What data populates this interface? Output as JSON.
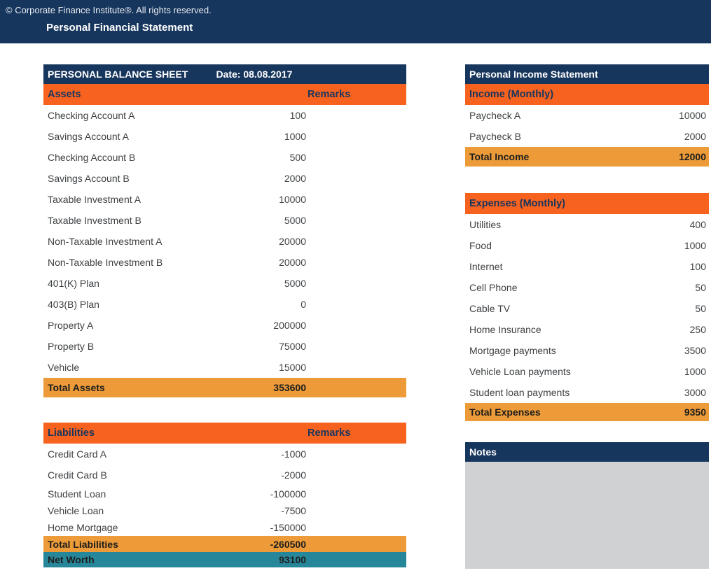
{
  "top_bar": {
    "copyright": "© Corporate Finance Institute®. All rights reserved.",
    "title": "Personal Financial Statement"
  },
  "balance_sheet": {
    "header": "PERSONAL BALANCE SHEET",
    "date_label": "Date: 08.08.2017",
    "assets": {
      "section_label": "Assets",
      "remarks_label": "Remarks",
      "rows": [
        {
          "label": "Checking Account A",
          "value": "100"
        },
        {
          "label": "Savings Account A",
          "value": "1000"
        },
        {
          "label": "Checking Account B",
          "value": "500"
        },
        {
          "label": "Savings Account B",
          "value": "2000"
        },
        {
          "label": "Taxable Investment A",
          "value": "10000"
        },
        {
          "label": "Taxable Investment B",
          "value": "5000"
        },
        {
          "label": "Non-Taxable Investment A",
          "value": "20000"
        },
        {
          "label": "Non-Taxable Investment B",
          "value": "20000"
        },
        {
          "label": "401(K) Plan",
          "value": "5000"
        },
        {
          "label": "403(B) Plan",
          "value": "0"
        },
        {
          "label": "Property A",
          "value": "200000"
        },
        {
          "label": "Property B",
          "value": "75000"
        },
        {
          "label": "Vehicle",
          "value": "15000"
        }
      ],
      "total": {
        "label": "Total Assets",
        "value": "353600"
      }
    },
    "liabilities": {
      "section_label": "Liabilities",
      "remarks_label": "Remarks",
      "rows": [
        {
          "label": "Credit Card A",
          "value": "-1000"
        },
        {
          "label": "Credit Card B",
          "value": "-2000"
        },
        {
          "label": "Student Loan",
          "value": "-100000",
          "compact": true
        },
        {
          "label": "Vehicle Loan",
          "value": "-7500",
          "compact": true
        },
        {
          "label": "Home Mortgage",
          "value": "-150000",
          "compact": true
        }
      ],
      "total": {
        "label": "Total Liabilities",
        "value": "-260500"
      },
      "net_worth": {
        "label": "Net Worth",
        "value": "93100"
      }
    }
  },
  "income_statement": {
    "header": "Personal Income Statement",
    "income": {
      "section_label": "Income (Monthly)",
      "rows": [
        {
          "label": "Paycheck A",
          "value": "10000"
        },
        {
          "label": "Paycheck B",
          "value": "2000"
        }
      ],
      "total": {
        "label": "Total Income",
        "value": "12000"
      }
    },
    "expenses": {
      "section_label": "Expenses (Monthly)",
      "rows": [
        {
          "label": "Utilities",
          "value": "400"
        },
        {
          "label": "Food",
          "value": "1000"
        },
        {
          "label": "Internet",
          "value": "100"
        },
        {
          "label": "Cell Phone",
          "value": "50"
        },
        {
          "label": "Cable TV",
          "value": "50"
        },
        {
          "label": "Home Insurance",
          "value": "250"
        },
        {
          "label": "Mortgage payments",
          "value": "3500"
        },
        {
          "label": "Vehicle Loan payments",
          "value": "1000"
        },
        {
          "label": "Student loan payments",
          "value": "3000"
        }
      ],
      "total": {
        "label": "Total Expenses",
        "value": "9350"
      }
    },
    "notes": {
      "header": "Notes"
    }
  },
  "colors": {
    "navy": "#17365D",
    "orange": "#F8621F",
    "amber": "#EC9B38",
    "teal": "#27879A",
    "notes_gray": "#CFD1D3",
    "row_text": "#3F4245"
  }
}
